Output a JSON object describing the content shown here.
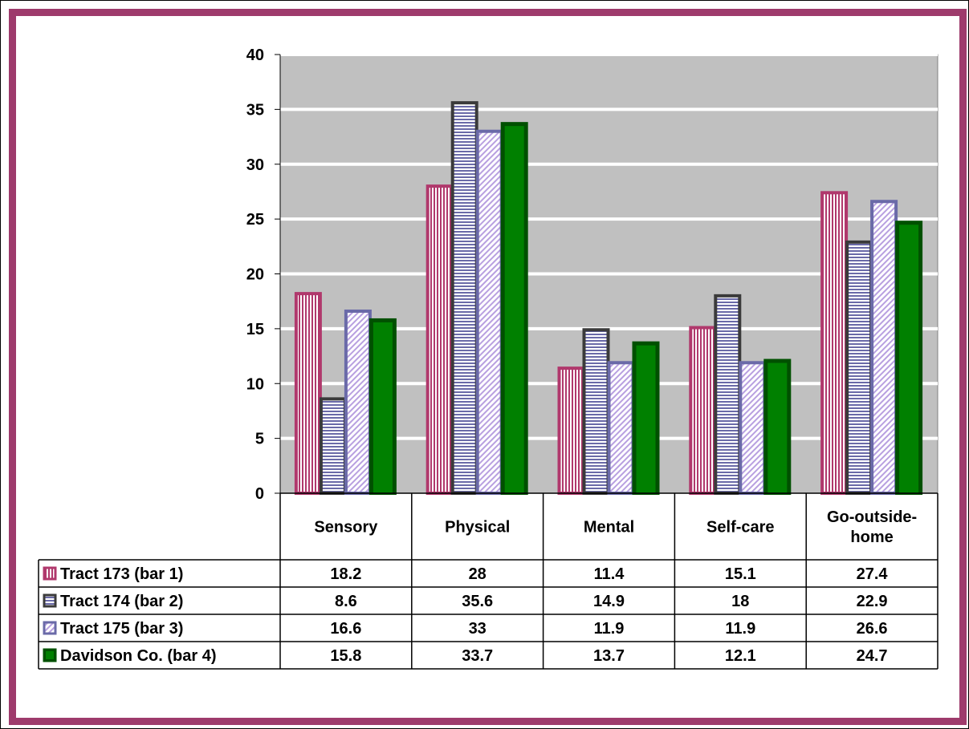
{
  "colors": {
    "frame": "#9e3b6c",
    "plot_background": "#c0c0c0",
    "gridline": "#ffffff",
    "tract_173": "#b0386c",
    "tract_174": "#3a3a3a",
    "tract_175": "#6a6aa8",
    "davidson": "#005000"
  },
  "chart_data": {
    "type": "bar",
    "title": "",
    "xlabel": "",
    "ylabel": "",
    "ylim": [
      0,
      40
    ],
    "yticks": [
      "0",
      "5",
      "10",
      "15",
      "20",
      "25",
      "30",
      "35",
      "40"
    ],
    "grid": true,
    "legend": "data-table",
    "categories": [
      "Sensory",
      "Physical",
      "Mental",
      "Self-care",
      "Go-outside-home"
    ],
    "category_label_lines": [
      [
        "Sensory"
      ],
      [
        "Physical"
      ],
      [
        "Mental"
      ],
      [
        "Self-care"
      ],
      [
        "Go-outside-",
        "home"
      ]
    ],
    "series": [
      {
        "name": "Tract 173 (bar 1)",
        "values": [
          18.2,
          28,
          11.4,
          15.1,
          27.4
        ],
        "labels": [
          "18.2",
          "28",
          "11.4",
          "15.1",
          "27.4"
        ]
      },
      {
        "name": "Tract 174 (bar 2)",
        "values": [
          8.6,
          35.6,
          14.9,
          18,
          22.9
        ],
        "labels": [
          "8.6",
          "35.6",
          "14.9",
          "18",
          "22.9"
        ]
      },
      {
        "name": "Tract 175 (bar 3)",
        "values": [
          16.6,
          33,
          11.9,
          11.9,
          26.6
        ],
        "labels": [
          "16.6",
          "33",
          "11.9",
          "11.9",
          "26.6"
        ]
      },
      {
        "name": "Davidson Co. (bar 4)",
        "values": [
          15.8,
          33.7,
          13.7,
          12.1,
          24.7
        ],
        "labels": [
          "15.8",
          "33.7",
          "13.7",
          "12.1",
          "24.7"
        ]
      }
    ]
  }
}
